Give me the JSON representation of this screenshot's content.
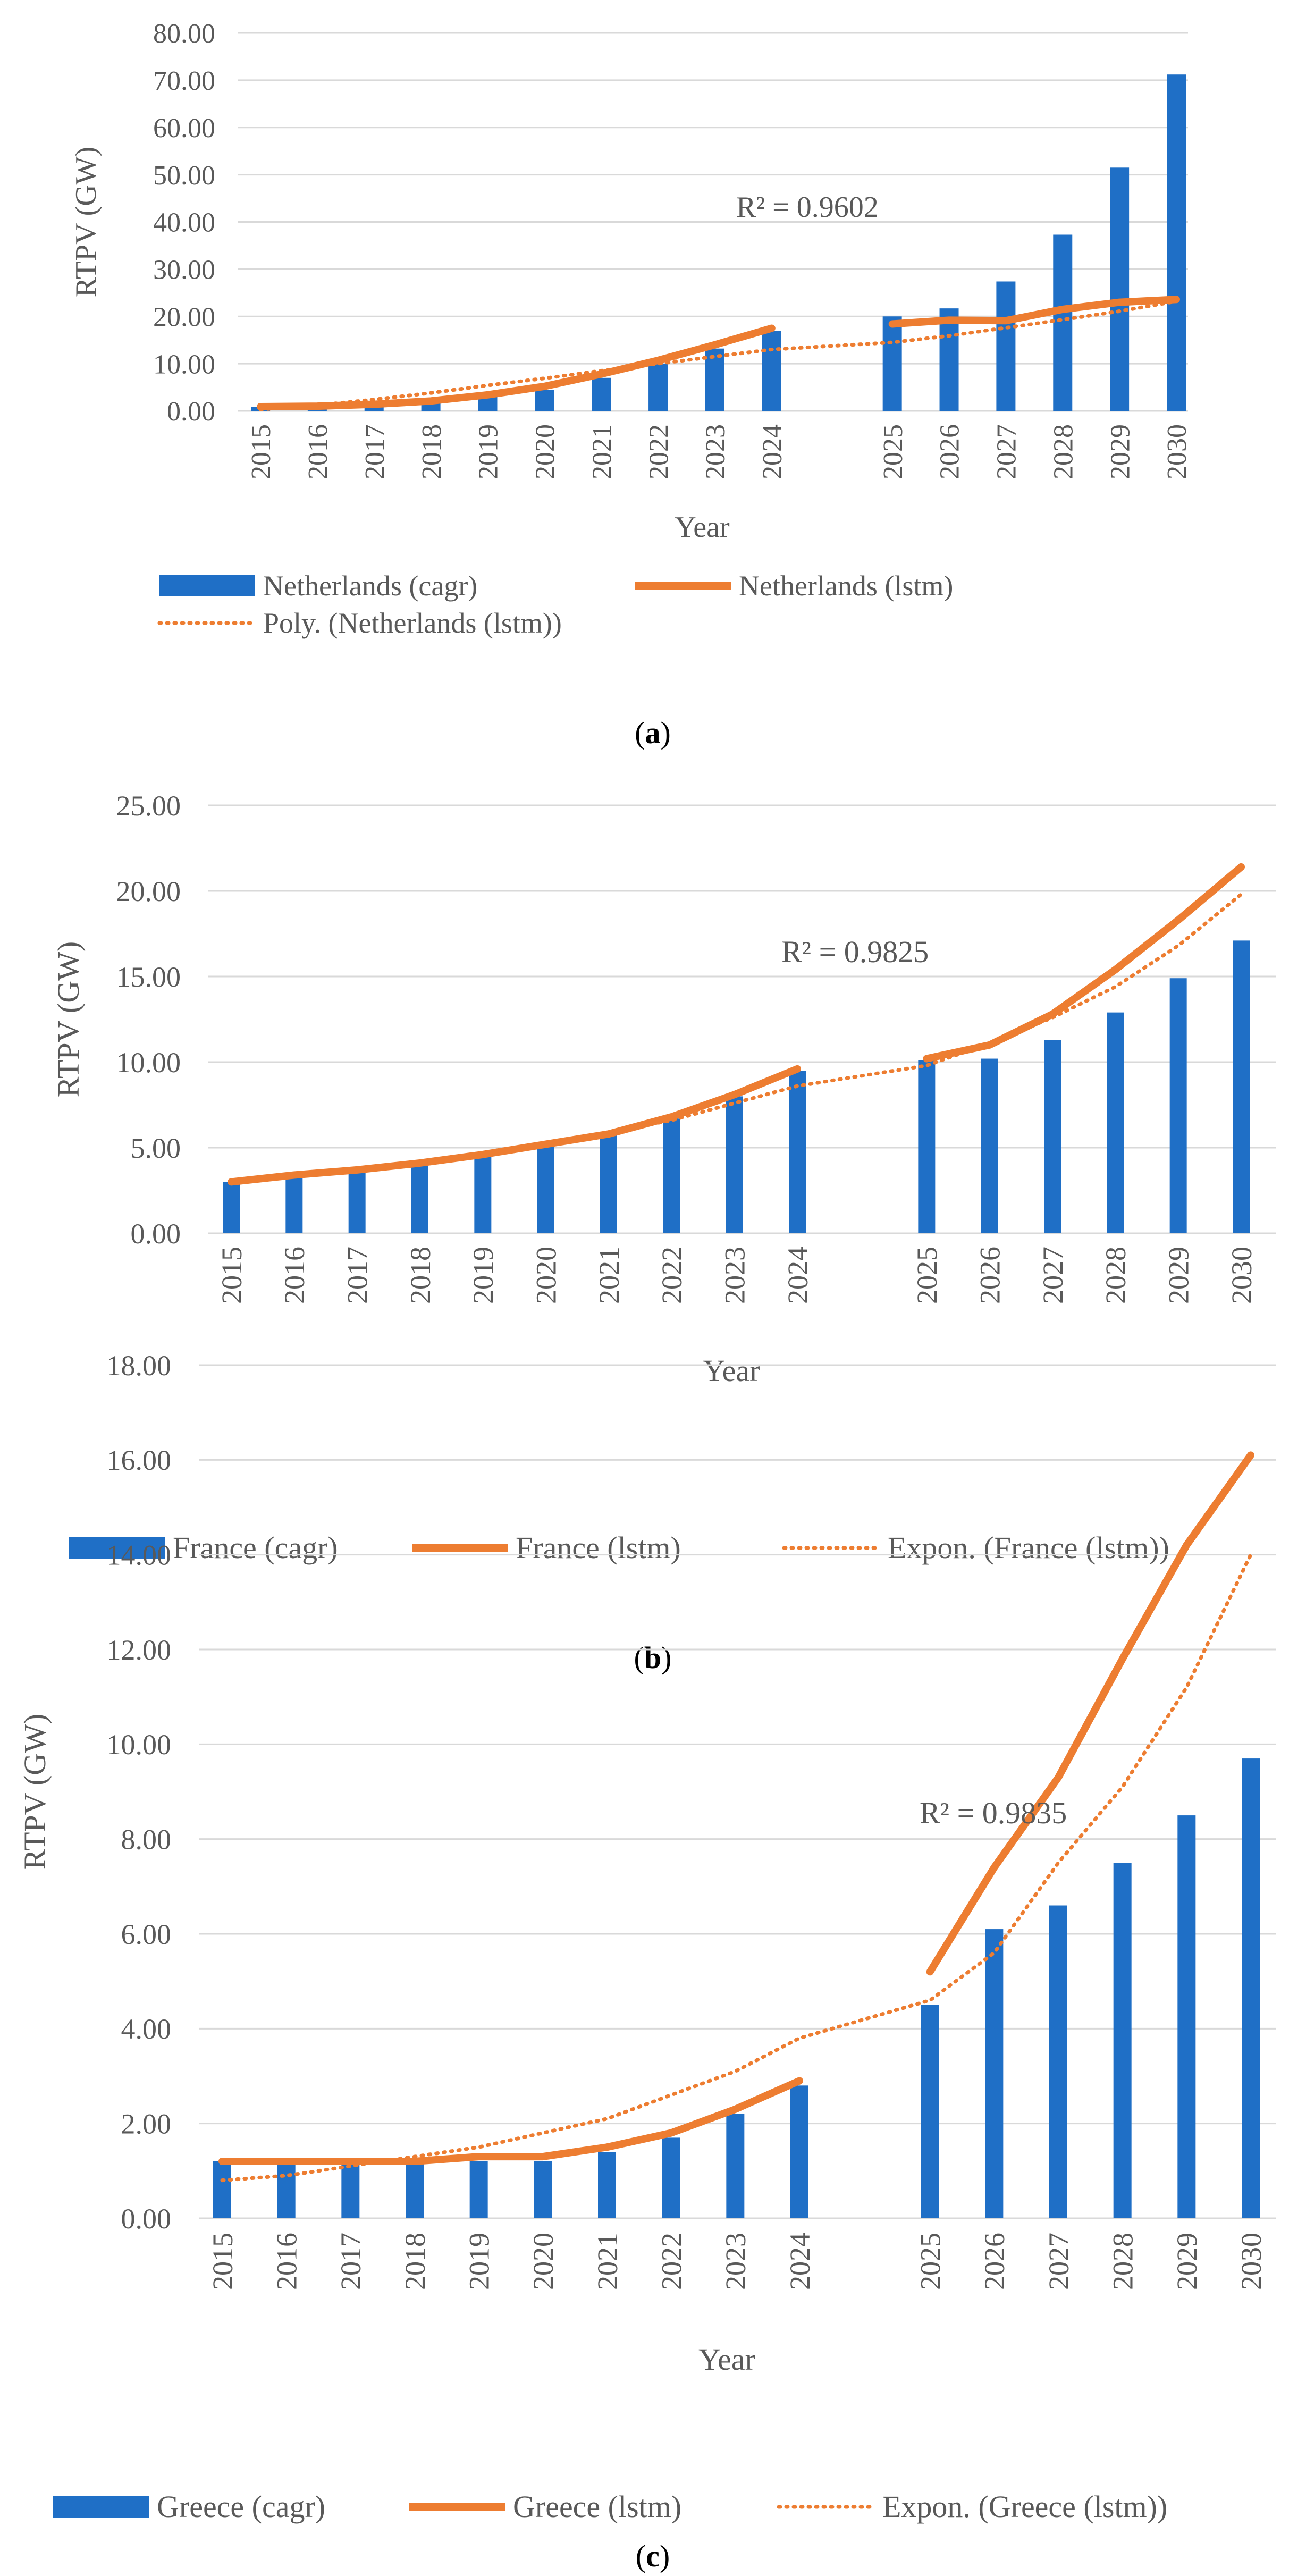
{
  "colors": {
    "bar": "#1f6fc6",
    "line": "#ed7d31",
    "grid": "#d9d9d9",
    "text": "#595959"
  },
  "chart_data": [
    {
      "type": "bar",
      "caption_open": "(",
      "caption_letter": "a",
      "caption_close": ")",
      "title": "",
      "xlabel": "Year",
      "ylabel": "RTPV (GW)",
      "ylim": [
        0,
        80
      ],
      "ytick_step": 10,
      "ytick_labels": [
        "0.00",
        "10.00",
        "20.00",
        "30.00",
        "40.00",
        "50.00",
        "60.00",
        "70.00",
        "80.00"
      ],
      "grid": true,
      "categories": [
        "2015",
        "2016",
        "2017",
        "2018",
        "2019",
        "2020",
        "2021",
        "2022",
        "2023",
        "2024",
        "2025",
        "2026",
        "2027",
        "2028",
        "2029",
        "2030"
      ],
      "gap_after_index": 9,
      "series": [
        {
          "name": "Netherlands (cagr)",
          "kind": "bar",
          "values": [
            0.9,
            1.0,
            1.4,
            2.1,
            3.0,
            4.5,
            7.0,
            9.9,
            13.2,
            16.9,
            20.0,
            21.7,
            27.4,
            37.3,
            51.5,
            71.2
          ]
        },
        {
          "name": "Netherlands (lstm)",
          "kind": "line",
          "values": [
            0.9,
            1.0,
            1.4,
            2.1,
            3.4,
            5.2,
            7.8,
            10.7,
            14.0,
            17.5,
            18.4,
            19.2,
            19.1,
            21.5,
            23.0,
            23.6
          ]
        },
        {
          "name": "Poly. (Netherlands (lstm))",
          "kind": "trend",
          "values": [
            0.3,
            1.2,
            2.4,
            3.8,
            5.4,
            6.9,
            8.5,
            10.0,
            11.5,
            13.0,
            14.5,
            15.9,
            17.6,
            19.3,
            21.1,
            23.2
          ]
        }
      ],
      "annotation": "R² = 0.9602",
      "legend_position": "bottom"
    },
    {
      "type": "bar",
      "caption_open": "(",
      "caption_letter": "b",
      "caption_close": ")",
      "title": "",
      "xlabel": "Year",
      "ylabel": "RTPV (GW)",
      "ylim": [
        0,
        25
      ],
      "ytick_step": 5,
      "ytick_labels": [
        "0.00",
        "5.00",
        "10.00",
        "15.00",
        "20.00",
        "25.00"
      ],
      "grid": true,
      "categories": [
        "2015",
        "2016",
        "2017",
        "2018",
        "2019",
        "2020",
        "2021",
        "2022",
        "2023",
        "2024",
        "2025",
        "2026",
        "2027",
        "2028",
        "2029",
        "2030"
      ],
      "gap_after_index": 9,
      "series": [
        {
          "name": "France (cagr)",
          "kind": "bar",
          "values": [
            3.0,
            3.3,
            3.6,
            4.0,
            4.5,
            5.1,
            5.8,
            6.7,
            8.0,
            9.5,
            10.1,
            10.2,
            11.3,
            12.9,
            14.9,
            17.1
          ]
        },
        {
          "name": "France (lstm)",
          "kind": "line",
          "values": [
            3.0,
            3.4,
            3.7,
            4.1,
            4.6,
            5.2,
            5.8,
            6.8,
            8.1,
            9.6,
            10.2,
            11.0,
            12.8,
            15.4,
            18.3,
            21.4
          ]
        },
        {
          "name": "Expon. (France (lstm))",
          "kind": "trend",
          "values": [
            3.1,
            3.4,
            3.8,
            4.2,
            4.7,
            5.3,
            5.9,
            6.6,
            7.6,
            8.6,
            9.8,
            11.1,
            12.6,
            14.4,
            16.8,
            19.8
          ]
        }
      ],
      "annotation": "R² = 0.9825",
      "legend_position": "bottom"
    },
    {
      "type": "bar",
      "caption_open": "(",
      "caption_letter": "c",
      "caption_close": ")",
      "title": "",
      "xlabel": "Year",
      "ylabel": "RTPV (GW)",
      "ylim": [
        0,
        18
      ],
      "ytick_step": 2,
      "ytick_labels": [
        "0.00",
        "2.00",
        "4.00",
        "6.00",
        "8.00",
        "10.00",
        "12.00",
        "14.00",
        "16.00",
        "18.00"
      ],
      "grid": true,
      "categories": [
        "2015",
        "2016",
        "2017",
        "2018",
        "2019",
        "2020",
        "2021",
        "2022",
        "2023",
        "2024",
        "2025",
        "2026",
        "2027",
        "2028",
        "2029",
        "2030"
      ],
      "gap_after_index": 9,
      "series": [
        {
          "name": "Greece (cagr)",
          "kind": "bar",
          "values": [
            1.2,
            1.2,
            1.2,
            1.2,
            1.2,
            1.2,
            1.4,
            1.7,
            2.2,
            2.8,
            4.5,
            6.1,
            6.6,
            7.5,
            8.5,
            9.7
          ]
        },
        {
          "name": "Greece (lstm)",
          "kind": "line",
          "values": [
            1.2,
            1.2,
            1.2,
            1.2,
            1.3,
            1.3,
            1.5,
            1.8,
            2.3,
            2.9,
            5.2,
            7.4,
            9.3,
            11.8,
            14.2,
            16.1
          ]
        },
        {
          "name": "Expon. (Greece (lstm))",
          "kind": "trend",
          "values": [
            0.8,
            0.9,
            1.1,
            1.3,
            1.5,
            1.8,
            2.1,
            2.6,
            3.1,
            3.8,
            4.6,
            5.6,
            7.5,
            9.1,
            11.2,
            14.0
          ]
        }
      ],
      "annotation": "R² = 0.9835",
      "legend_position": "bottom"
    }
  ]
}
